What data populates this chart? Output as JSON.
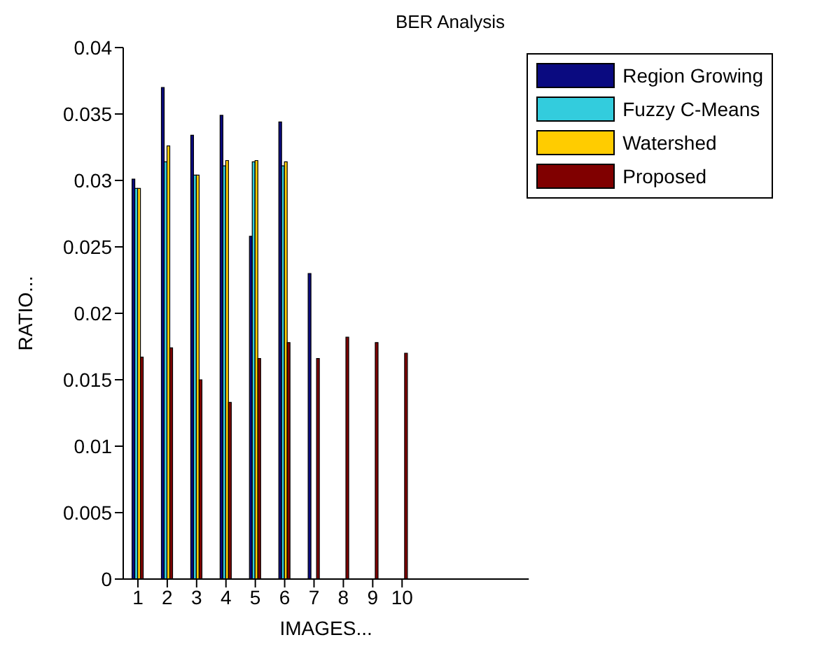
{
  "chart_data": {
    "type": "bar",
    "title": "BER Analysis",
    "xlabel": "IMAGES...",
    "ylabel": "RATIO...",
    "categories": [
      "1",
      "2",
      "3",
      "4",
      "5",
      "6",
      "7",
      "8",
      "9",
      "10"
    ],
    "series": [
      {
        "name": "Region Growing",
        "color": "#0a0a80",
        "values": [
          0.0301,
          0.037,
          0.0334,
          0.0349,
          0.0258,
          0.0344,
          0.023,
          null,
          null,
          null
        ]
      },
      {
        "name": "Fuzzy C-Means",
        "color": "#33ccdd",
        "values": [
          0.0294,
          0.0314,
          0.0304,
          0.0311,
          0.0314,
          0.0311,
          null,
          null,
          null,
          null
        ]
      },
      {
        "name": "Watershed",
        "color": "#ffcc00",
        "values": [
          0.0294,
          0.0326,
          0.0304,
          0.0315,
          0.0315,
          0.0314,
          null,
          null,
          null,
          null
        ]
      },
      {
        "name": "Proposed",
        "color": "#800000",
        "values": [
          0.0167,
          0.0174,
          0.015,
          0.0133,
          0.0166,
          0.0178,
          0.0166,
          0.0182,
          0.0178,
          0.017
        ]
      }
    ],
    "ylim": [
      0,
      0.04
    ],
    "yticks": [
      0,
      0.005,
      0.01,
      0.015,
      0.02,
      0.025,
      0.03,
      0.035,
      0.04
    ],
    "grid": false,
    "legend": "top right"
  }
}
